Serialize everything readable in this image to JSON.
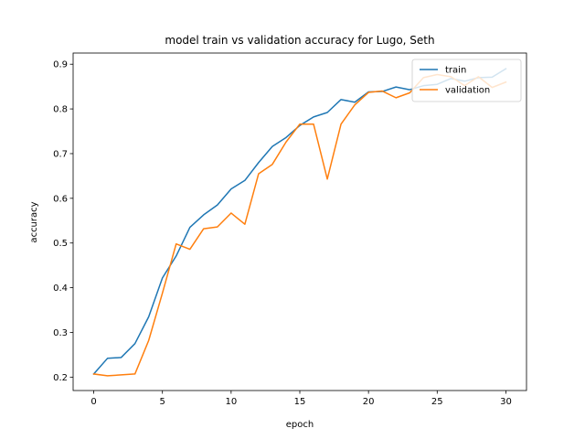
{
  "chart_data": {
    "type": "line",
    "title": "model train vs validation accuracy for Lugo, Seth",
    "xlabel": "epoch",
    "ylabel": "accuracy",
    "xlim": [
      -1.5,
      31.5
    ],
    "ylim": [
      0.17,
      0.925
    ],
    "xticks": [
      0,
      5,
      10,
      15,
      20,
      25,
      30
    ],
    "yticks": [
      0.2,
      0.3,
      0.4,
      0.5,
      0.6,
      0.7,
      0.8,
      0.9
    ],
    "legend_position": "upper-right",
    "grid": false,
    "x": [
      0,
      1,
      2,
      3,
      4,
      5,
      6,
      7,
      8,
      9,
      10,
      11,
      12,
      13,
      14,
      15,
      16,
      17,
      18,
      19,
      20,
      21,
      22,
      23,
      24,
      25,
      26,
      27,
      28,
      29,
      30
    ],
    "series": [
      {
        "name": "train",
        "color": "#1f77b4",
        "values": [
          0.207,
          0.242,
          0.244,
          0.275,
          0.335,
          0.422,
          0.471,
          0.535,
          0.563,
          0.585,
          0.621,
          0.64,
          0.68,
          0.716,
          0.736,
          0.763,
          0.782,
          0.792,
          0.821,
          0.815,
          0.838,
          0.839,
          0.849,
          0.843,
          0.852,
          0.855,
          0.868,
          0.862,
          0.87,
          0.871,
          0.89
        ]
      },
      {
        "name": "validation",
        "color": "#ff7f0e",
        "values": [
          0.207,
          0.203,
          0.205,
          0.207,
          0.282,
          0.388,
          0.498,
          0.486,
          0.532,
          0.536,
          0.567,
          0.542,
          0.655,
          0.676,
          0.726,
          0.766,
          0.766,
          0.643,
          0.766,
          0.809,
          0.837,
          0.84,
          0.825,
          0.836,
          0.87,
          0.877,
          0.872,
          0.852,
          0.872,
          0.848,
          0.86
        ]
      }
    ]
  }
}
